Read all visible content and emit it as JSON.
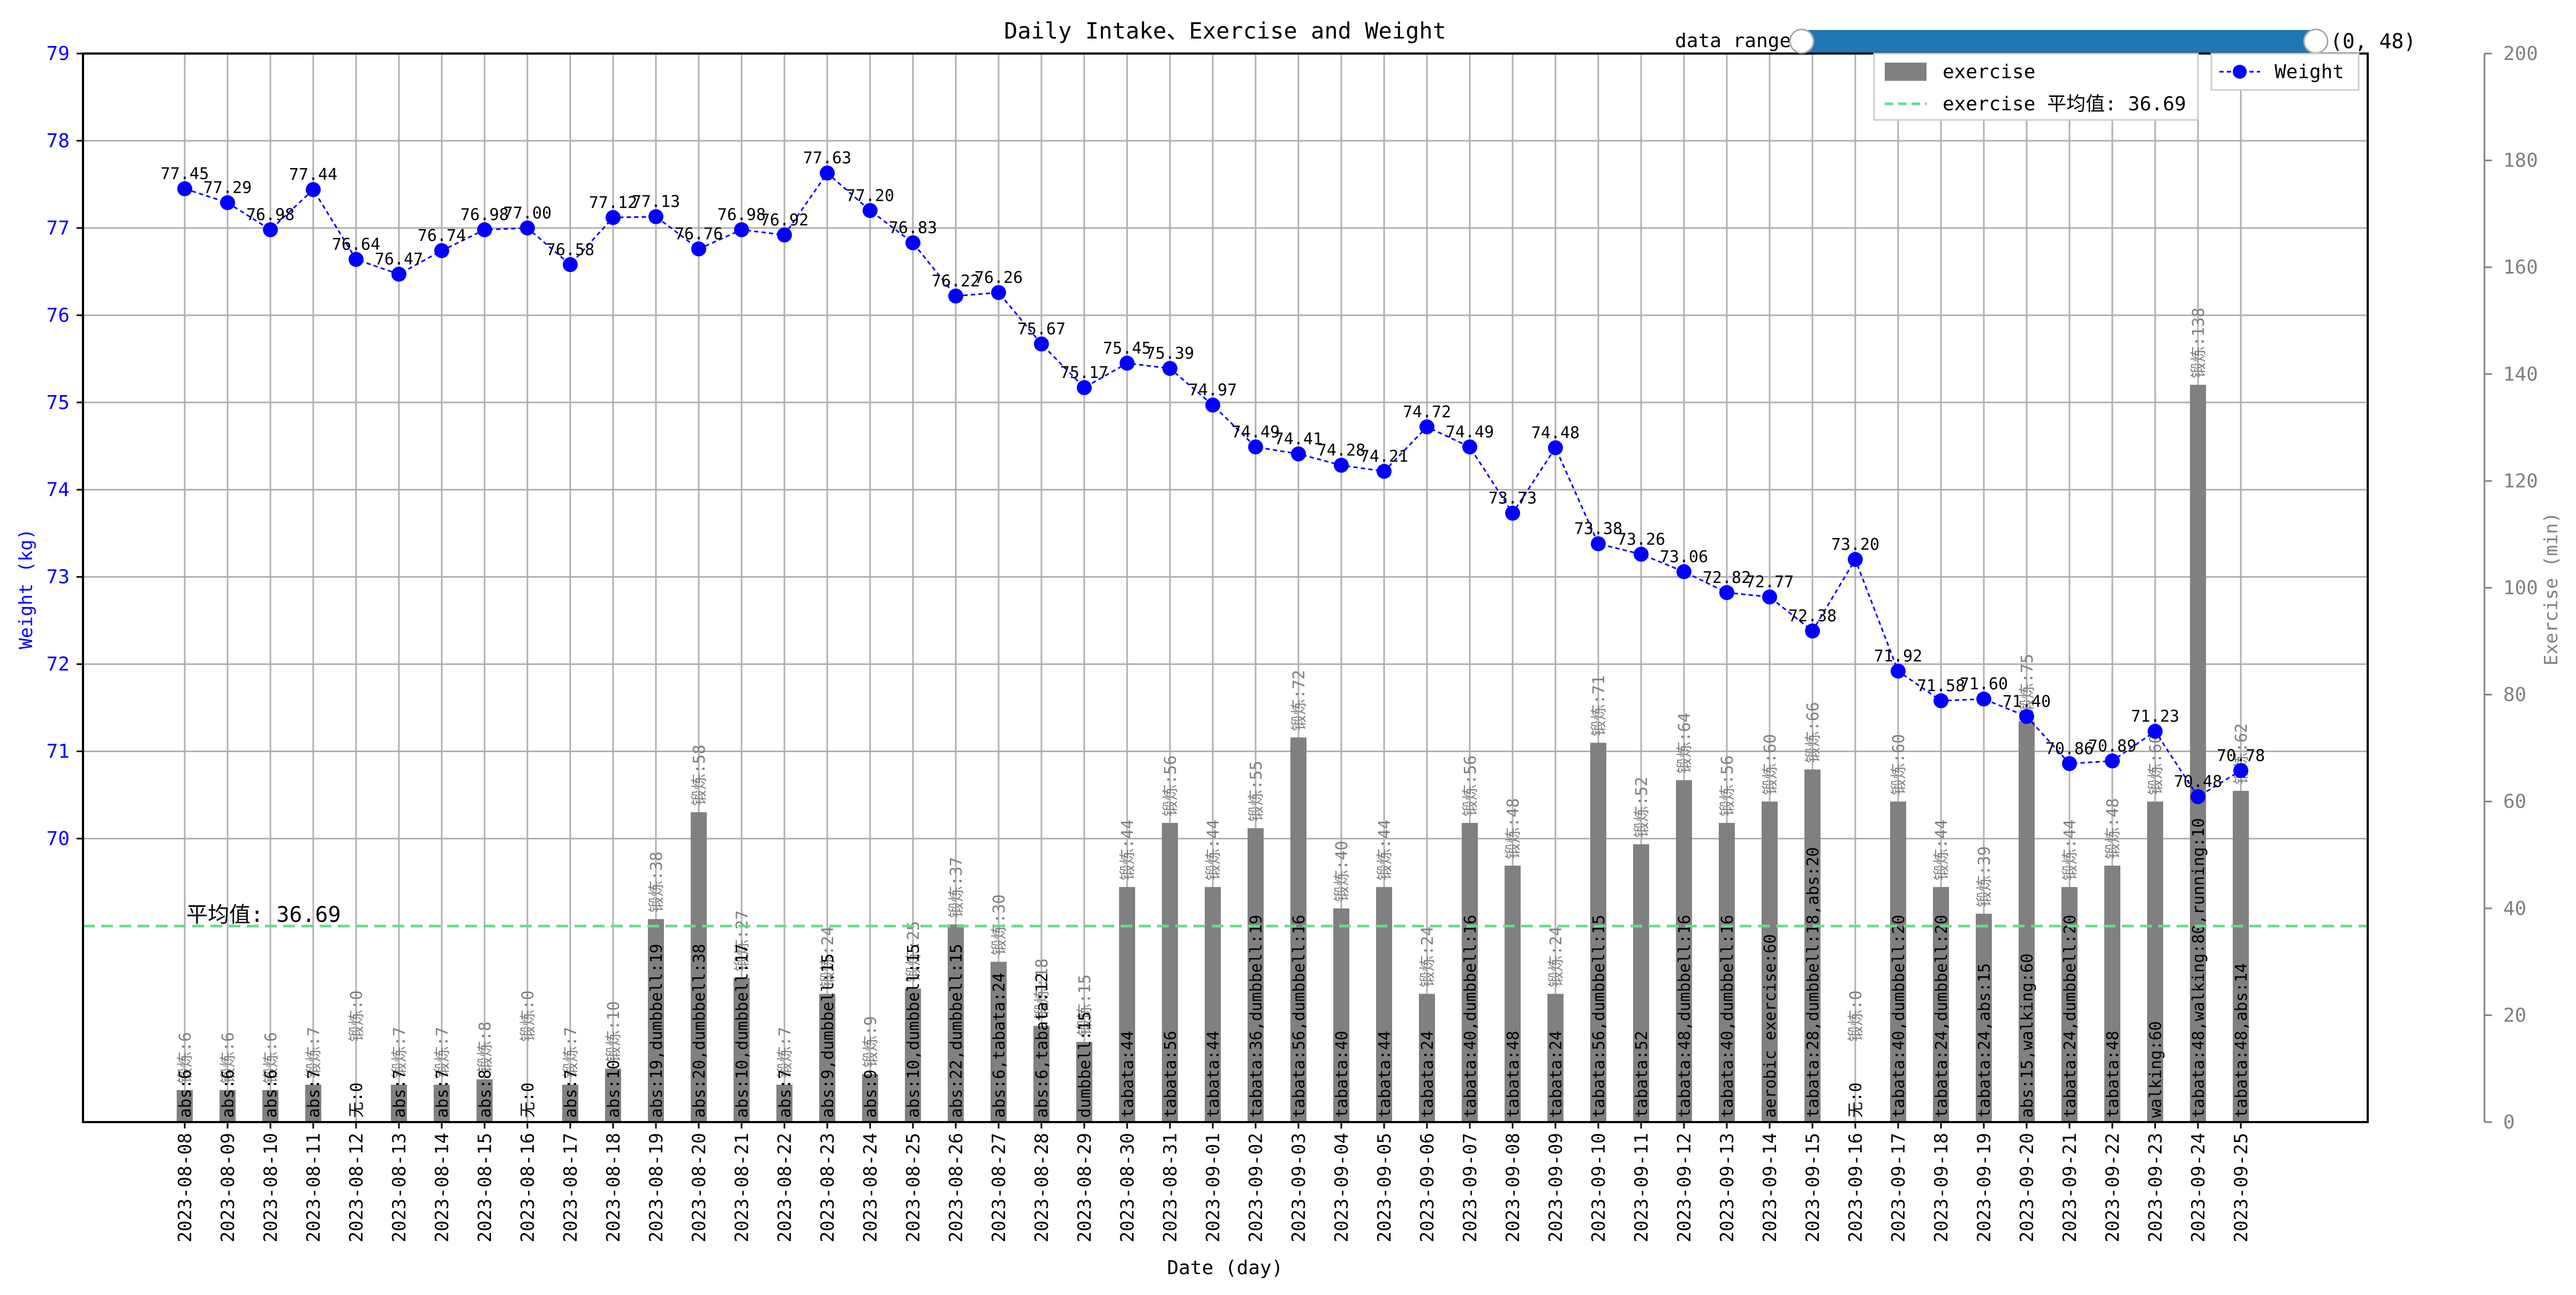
{
  "chart_data": {
    "type": "bar+line",
    "title": "Daily Intake、Exercise and Weight",
    "xlabel": "Date (day)",
    "ylabel_left": "Weight (kg)",
    "ylabel_right": "Exercise (min)",
    "ylim_left": [
      66.75,
      79
    ],
    "yticks_left": [
      70,
      71,
      72,
      73,
      74,
      75,
      76,
      77,
      78,
      79
    ],
    "ylim_right": [
      0,
      200
    ],
    "yticks_right": [
      0,
      20,
      40,
      60,
      80,
      100,
      120,
      140,
      160,
      180,
      200
    ],
    "grid": true,
    "colors": {
      "weight": "#0000ff",
      "exercise": "#808080",
      "mean_line": "#66dd88",
      "slider": "#1f77b4",
      "left_axis": "#0000ff",
      "right_axis": "#808080"
    },
    "categories": [
      "2023-08-08",
      "2023-08-09",
      "2023-08-10",
      "2023-08-11",
      "2023-08-12",
      "2023-08-13",
      "2023-08-14",
      "2023-08-15",
      "2023-08-16",
      "2023-08-17",
      "2023-08-18",
      "2023-08-19",
      "2023-08-20",
      "2023-08-21",
      "2023-08-22",
      "2023-08-23",
      "2023-08-24",
      "2023-08-25",
      "2023-08-26",
      "2023-08-27",
      "2023-08-28",
      "2023-08-29",
      "2023-08-30",
      "2023-08-31",
      "2023-09-01",
      "2023-09-02",
      "2023-09-03",
      "2023-09-04",
      "2023-09-05",
      "2023-09-06",
      "2023-09-07",
      "2023-09-08",
      "2023-09-09",
      "2023-09-10",
      "2023-09-11",
      "2023-09-12",
      "2023-09-13",
      "2023-09-14",
      "2023-09-15",
      "2023-09-16",
      "2023-09-17",
      "2023-09-18",
      "2023-09-19",
      "2023-09-20",
      "2023-09-21",
      "2023-09-22",
      "2023-09-23",
      "2023-09-24",
      "2023-09-25"
    ],
    "series": [
      {
        "name": "Weight",
        "type": "line",
        "axis": "left",
        "values": [
          77.45,
          77.29,
          76.98,
          77.44,
          76.64,
          76.47,
          76.74,
          76.98,
          77.0,
          76.58,
          77.12,
          77.13,
          76.76,
          76.98,
          76.92,
          77.63,
          77.2,
          76.83,
          76.22,
          76.26,
          75.67,
          75.17,
          75.45,
          75.39,
          74.97,
          74.49,
          74.41,
          74.28,
          74.21,
          74.72,
          74.49,
          73.73,
          74.48,
          73.38,
          73.26,
          73.06,
          72.82,
          72.77,
          72.38,
          73.2,
          71.92,
          71.58,
          71.6,
          71.4,
          70.86,
          70.89,
          71.23,
          70.48,
          70.78
        ],
        "labels": [
          "77.45",
          "77.29",
          "76.98",
          "77.44",
          "76.64",
          "76.47",
          "76.74",
          "76.98",
          "77.00",
          "76.58",
          "77.12",
          "77.13",
          "76.76",
          "76.98",
          "76.92",
          "77.63",
          "77.20",
          "76.83",
          "76.22",
          "76.26",
          "75.67",
          "75.17",
          "75.45",
          "75.39",
          "74.97",
          "74.49",
          "74.41",
          "74.28",
          "74.21",
          "74.72",
          "74.49",
          "73.73",
          "74.48",
          "73.38",
          "73.26",
          "73.06",
          "72.82",
          "72.77",
          "72.38",
          "73.20",
          "71.92",
          "71.58",
          "71.60",
          "71.40",
          "70.86",
          "70.89",
          "71.23",
          "70.48",
          "70.78"
        ]
      },
      {
        "name": "exercise",
        "type": "bar",
        "axis": "right",
        "values": [
          6,
          6,
          6,
          7,
          0,
          7,
          7,
          8,
          0,
          7,
          10,
          38,
          58,
          27,
          7,
          24,
          9,
          25,
          37,
          30,
          18,
          15,
          44,
          56,
          44,
          55,
          72,
          40,
          44,
          24,
          56,
          48,
          24,
          71,
          52,
          64,
          56,
          60,
          66,
          0,
          60,
          44,
          39,
          75,
          44,
          48,
          60,
          138,
          62
        ],
        "top_labels": [
          "锻炼:6",
          "锻炼:6",
          "锻炼:6",
          "锻炼:7",
          "锻炼:0",
          "锻炼:7",
          "锻炼:7",
          "锻炼:8",
          "锻炼:0",
          "锻炼:7",
          "锻炼:10",
          "锻炼:38",
          "锻炼:58",
          "锻炼:27",
          "锻炼:7",
          "锻炼:24",
          "锻炼:9",
          "锻炼:25",
          "锻炼:37",
          "锻炼:30",
          "锻炼:18",
          "锻炼:15",
          "锻炼:44",
          "锻炼:56",
          "锻炼:44",
          "锻炼:55",
          "锻炼:72",
          "锻炼:40",
          "锻炼:44",
          "锻炼:24",
          "锻炼:56",
          "锻炼:48",
          "锻炼:24",
          "锻炼:71",
          "锻炼:52",
          "锻炼:64",
          "锻炼:56",
          "锻炼:60",
          "锻炼:66",
          "锻炼:0",
          "锻炼:60",
          "锻炼:44",
          "锻炼:39",
          "锻炼:75",
          "锻炼:44",
          "锻炼:48",
          "锻炼:60",
          "锻炼:138",
          "锻炼:62"
        ],
        "inner_labels": [
          "abs:6",
          "abs:6",
          "abs:6",
          "abs:7",
          "无:0",
          "abs:7",
          "abs:7",
          "abs:8",
          "无:0",
          "abs:7",
          "abs:10",
          "abs:19,dumbbell:19",
          "abs:20,dumbbell:38",
          "abs:10,dumbbell:17",
          "abs:7",
          "abs:9,dumbbell:15",
          "abs:9",
          "abs:10,dumbbell:15",
          "abs:22,dumbbell:15",
          "abs:6,tabata:24",
          "abs:6,tabata:12",
          "dumbbell:15",
          "tabata:44",
          "tabata:56",
          "tabata:44",
          "tabata:36,dumbbell:19",
          "tabata:56,dumbbell:16",
          "tabata:40",
          "tabata:44",
          "tabata:24",
          "tabata:40,dumbbell:16",
          "tabata:48",
          "tabata:24",
          "tabata:56,dumbbell:15",
          "tabata:52",
          "tabata:48,dumbbell:16",
          "tabata:40,dumbbell:16",
          "aerobic exercise:60",
          "tabata:28,dumbbell:18,abs:20",
          "无:0",
          "tabata:40,dumbbell:20",
          "tabata:24,dumbbell:20",
          "tabata:24,abs:15",
          "abs:15,walking:60",
          "tabata:24,dumbbell:20",
          "tabata:48",
          "walking:60",
          "tabata:48,walking:80,running:10",
          "tabata:48,abs:14"
        ]
      }
    ],
    "mean_line": {
      "value": 36.69,
      "axis": "right",
      "label": "平均值: 36.69",
      "legend_label": "exercise 平均值: 36.69"
    },
    "legends": [
      {
        "position": "upper-center",
        "entries": [
          "exercise",
          "exercise 平均值: 36.69"
        ]
      },
      {
        "position": "upper-right",
        "entries": [
          "Weight"
        ]
      }
    ],
    "slider": {
      "label": "data range",
      "min": 0,
      "max": 48,
      "value_text": "(0, 48)"
    }
  }
}
